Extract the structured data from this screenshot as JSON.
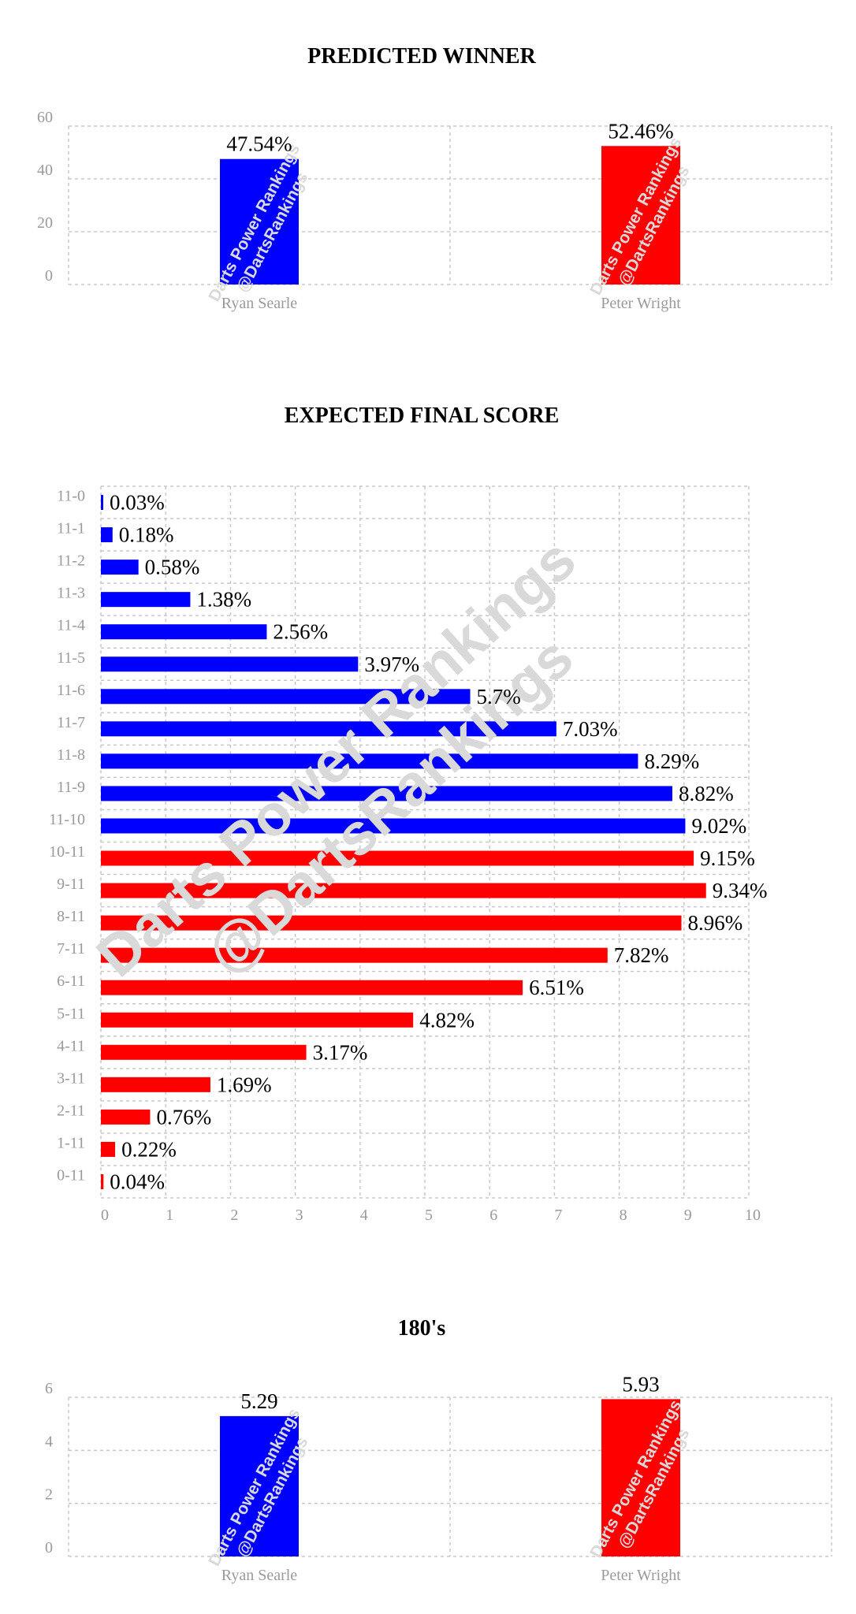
{
  "watermark": {
    "main": "Darts Power Rankings",
    "handle": "@DartsRankings"
  },
  "colors": {
    "ryan": "#0000ff",
    "peter": "#ff0000",
    "grid": "#c8c8c8",
    "tick": "#9a9a9a"
  },
  "chart_data": [
    {
      "id": "predicted-winner",
      "type": "bar",
      "title": "PREDICTED WINNER",
      "categories": [
        "Ryan Searle",
        "Peter Wright"
      ],
      "values": [
        47.54,
        52.46
      ],
      "labels": [
        "47.54%",
        "52.46%"
      ],
      "colors": [
        "#0000ff",
        "#ff0000"
      ],
      "ylim": [
        0,
        60
      ],
      "yticks": [
        0,
        20,
        40,
        60
      ],
      "grid": true
    },
    {
      "id": "expected-final-score",
      "type": "bar",
      "orientation": "horizontal",
      "title": "EXPECTED FINAL SCORE",
      "categories": [
        "11-0",
        "11-1",
        "11-2",
        "11-3",
        "11-4",
        "11-5",
        "11-6",
        "11-7",
        "11-8",
        "11-9",
        "11-10",
        "10-11",
        "9-11",
        "8-11",
        "7-11",
        "6-11",
        "5-11",
        "4-11",
        "3-11",
        "2-11",
        "1-11",
        "0-11"
      ],
      "values": [
        0.03,
        0.18,
        0.58,
        1.38,
        2.56,
        3.97,
        5.7,
        7.03,
        8.29,
        8.82,
        9.02,
        9.15,
        9.34,
        8.96,
        7.82,
        6.51,
        4.82,
        3.17,
        1.69,
        0.76,
        0.22,
        0.04
      ],
      "labels": [
        "0.03%",
        "0.18%",
        "0.58%",
        "1.38%",
        "2.56%",
        "3.97%",
        "5.7%",
        "7.03%",
        "8.29%",
        "8.82%",
        "9.02%",
        "9.15%",
        "9.34%",
        "8.96%",
        "7.82%",
        "6.51%",
        "4.82%",
        "3.17%",
        "1.69%",
        "0.76%",
        "0.22%",
        "0.04%"
      ],
      "colors": [
        "#0000ff",
        "#0000ff",
        "#0000ff",
        "#0000ff",
        "#0000ff",
        "#0000ff",
        "#0000ff",
        "#0000ff",
        "#0000ff",
        "#0000ff",
        "#0000ff",
        "#ff0000",
        "#ff0000",
        "#ff0000",
        "#ff0000",
        "#ff0000",
        "#ff0000",
        "#ff0000",
        "#ff0000",
        "#ff0000",
        "#ff0000",
        "#ff0000"
      ],
      "xlim": [
        0,
        10
      ],
      "xticks": [
        0,
        1,
        2,
        3,
        4,
        5,
        6,
        7,
        8,
        9,
        10
      ],
      "grid": true
    },
    {
      "id": "180s",
      "type": "bar",
      "title": "180's",
      "categories": [
        "Ryan Searle",
        "Peter Wright"
      ],
      "values": [
        5.29,
        5.93
      ],
      "labels": [
        "5.29",
        "5.93"
      ],
      "colors": [
        "#0000ff",
        "#ff0000"
      ],
      "ylim": [
        0,
        6
      ],
      "yticks": [
        0,
        2,
        4,
        6
      ],
      "grid": true
    }
  ]
}
